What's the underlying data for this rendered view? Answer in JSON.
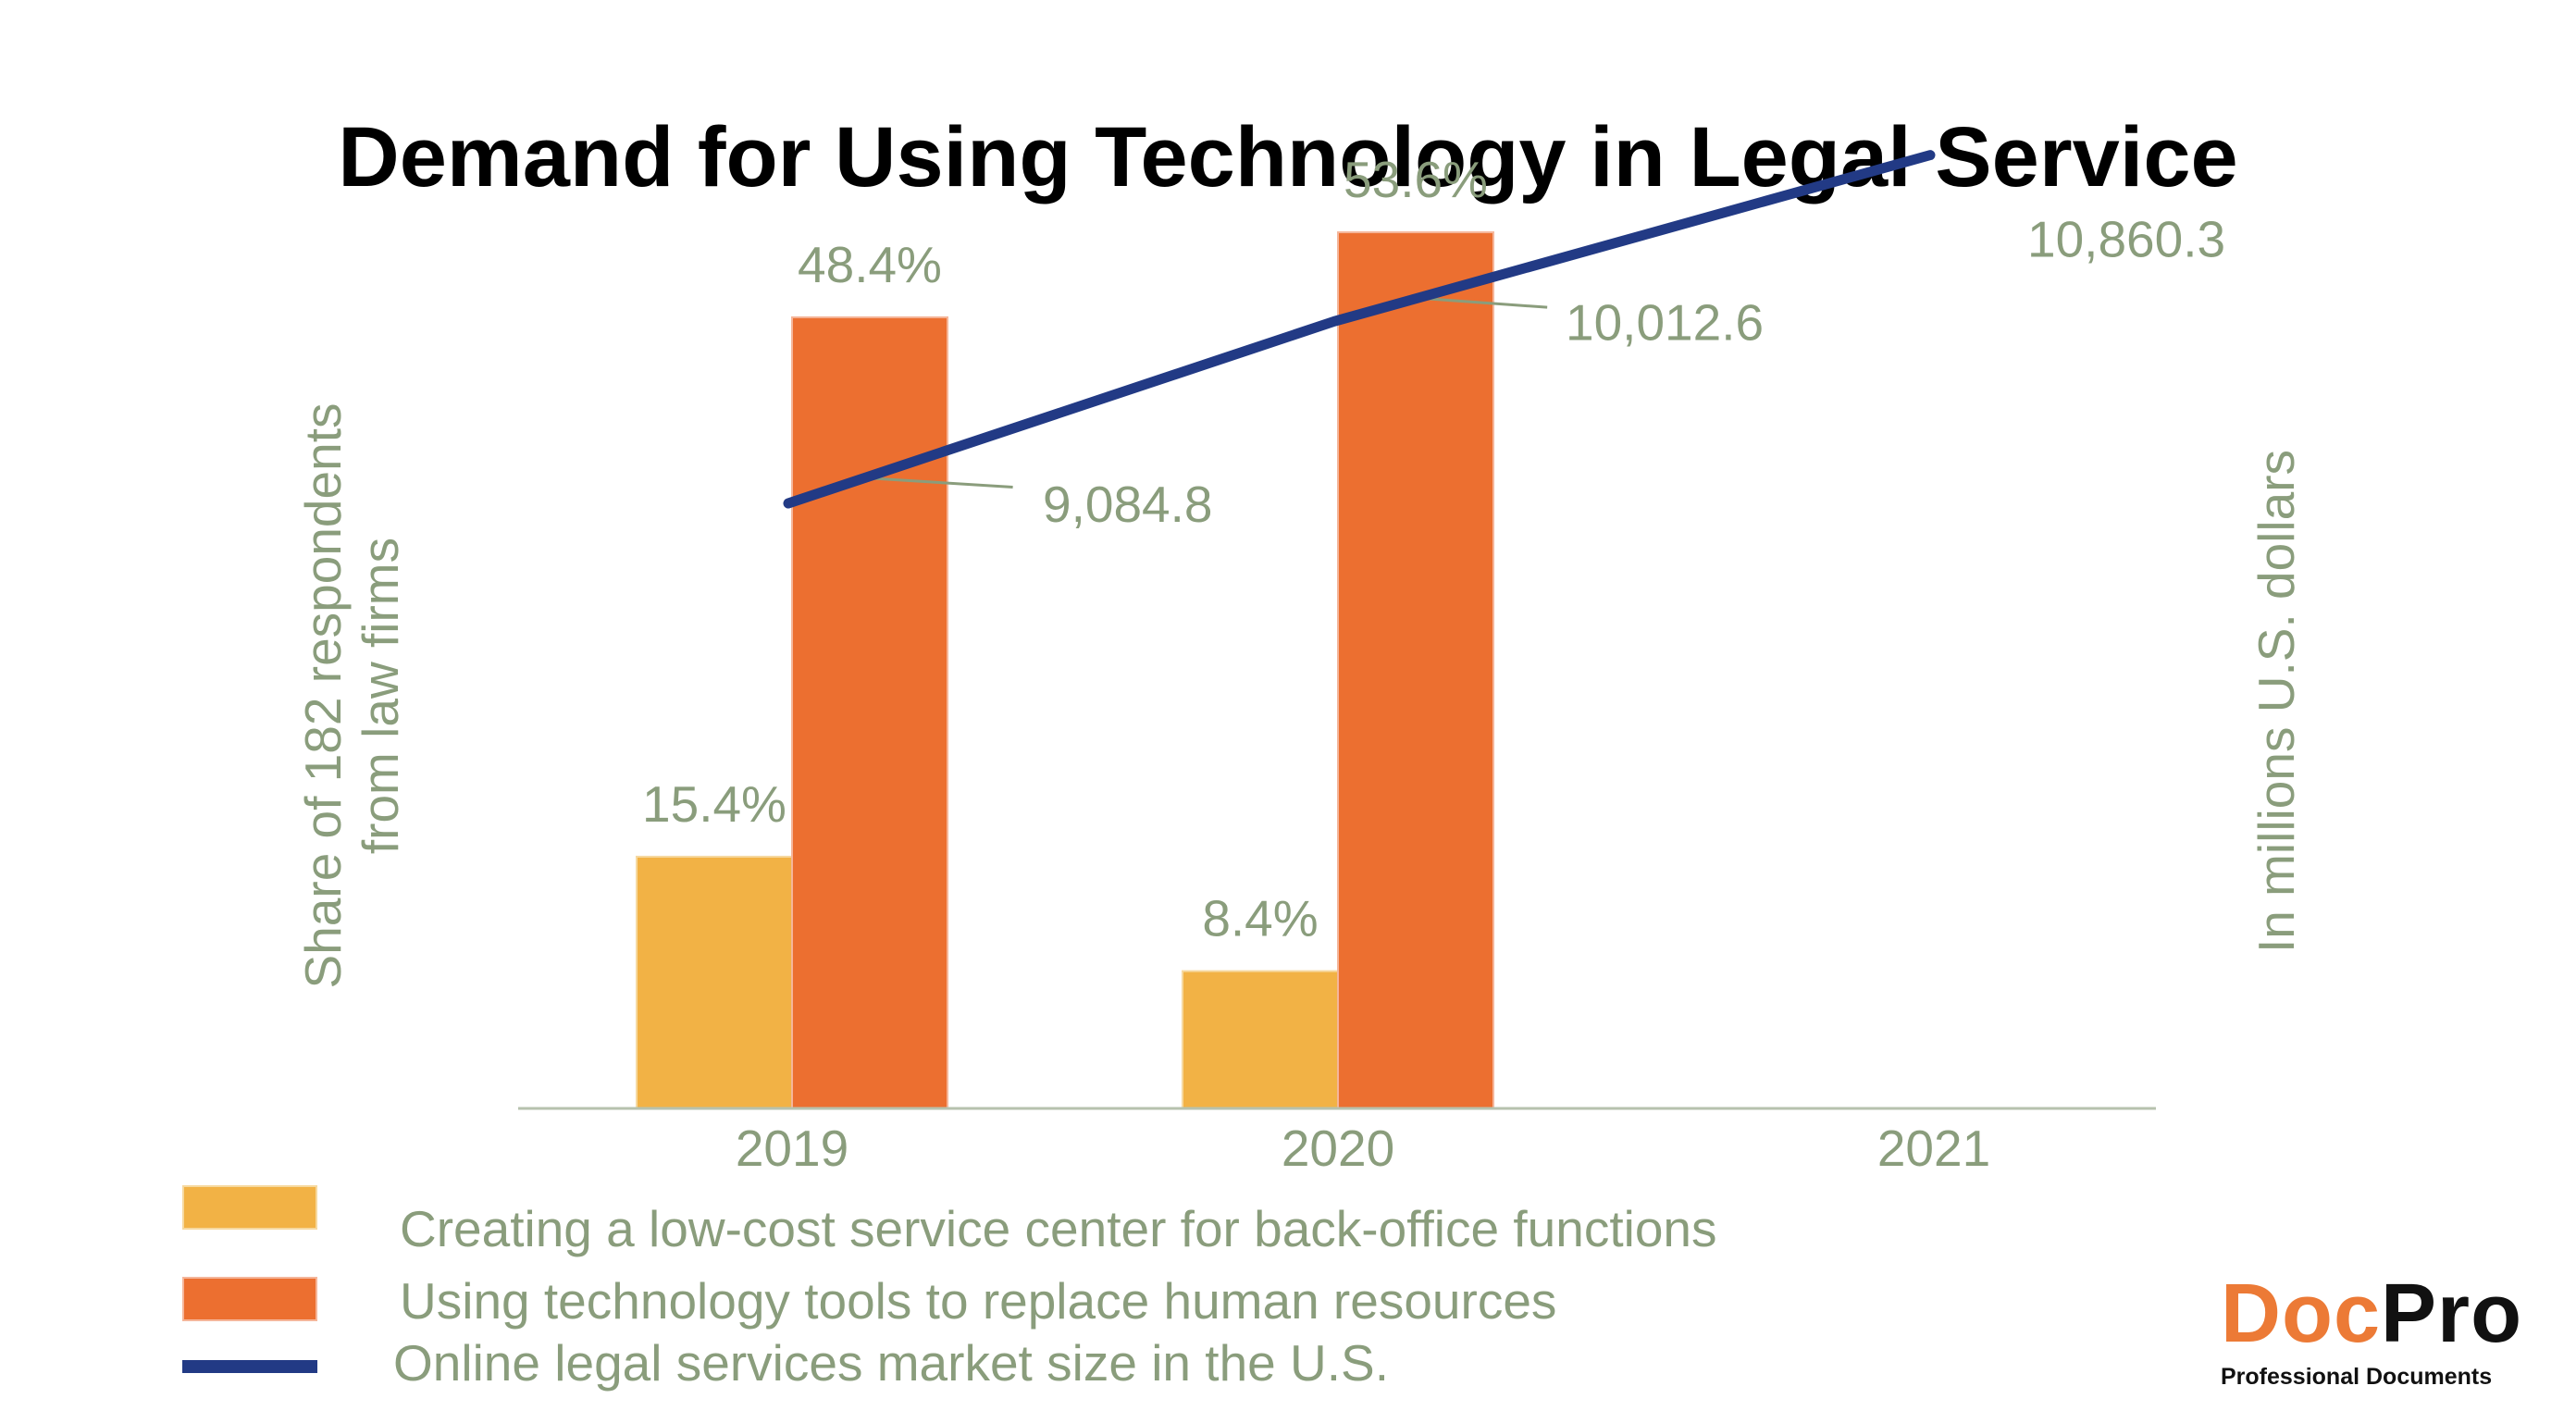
{
  "chart_data": {
    "type": "bar",
    "title": "Demand for Using Technology in Legal Service",
    "categories": [
      "2019",
      "2020",
      "2021"
    ],
    "ylabel": "Share of 182 respondents from law firms",
    "ylabel_lines": [
      "Share of 182 respondents",
      "from law firms"
    ],
    "y2label": "In millions U.S. dollars",
    "ylim": [
      0,
      60
    ],
    "y2lim": [
      6000,
      11000
    ],
    "grid": false,
    "legend_position": "bottom-left",
    "series": [
      {
        "name": "Creating a low-cost service center for back-office functions",
        "type": "bar",
        "axis": "left",
        "values": [
          15.4,
          8.4,
          null
        ],
        "labels": [
          "15.4%",
          "8.4%",
          ""
        ],
        "color": "#f2b245"
      },
      {
        "name": "Using technology tools to replace human resources",
        "type": "bar",
        "axis": "left",
        "values": [
          48.4,
          53.6,
          null
        ],
        "labels": [
          "48.4%",
          "53.6%",
          ""
        ],
        "color": "#ec6f30"
      },
      {
        "name": "Online legal services market size in the U.S.",
        "type": "line",
        "axis": "right",
        "values": [
          9084.8,
          10012.6,
          10860.3
        ],
        "labels": [
          "9,084.8",
          "10,012.6",
          "10,860.3"
        ],
        "color": "#223a85"
      }
    ],
    "label_color": "#8a9d7c"
  },
  "logo": {
    "doc": "Doc",
    "pro": "Pro",
    "tagline": "Professional Documents"
  }
}
